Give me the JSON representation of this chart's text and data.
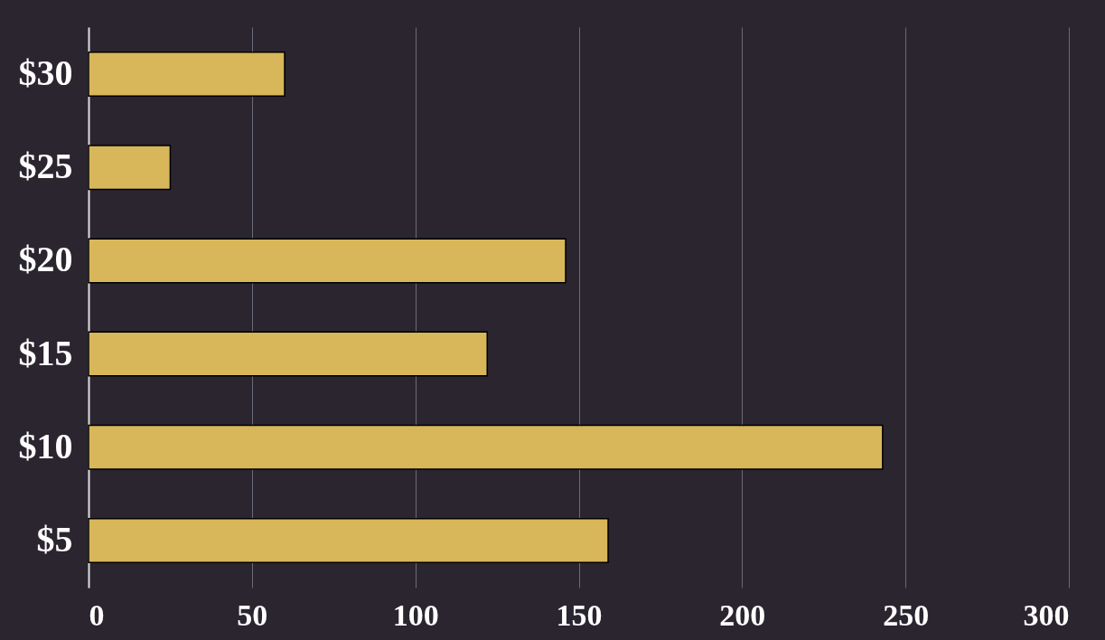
{
  "chart_data": {
    "type": "bar",
    "orientation": "horizontal",
    "categories": [
      "$30",
      "$25",
      "$20",
      "$15",
      "$10",
      "$5"
    ],
    "values": [
      60,
      25,
      146,
      122,
      243,
      159
    ],
    "color": "#d8b75a",
    "xlim": [
      0,
      300
    ],
    "xticks": [
      0,
      50,
      100,
      150,
      200,
      250,
      300
    ],
    "grid": "x"
  }
}
